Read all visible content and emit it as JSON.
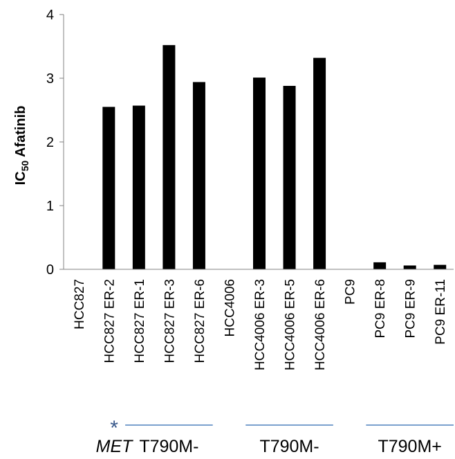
{
  "chart_data": {
    "type": "bar",
    "categories": [
      "HCC827",
      "HCC827 ER-2",
      "HCC827 ER-1",
      "HCC827 ER-3",
      "HCC827 ER-6",
      "HCC4006",
      "HCC4006 ER-3",
      "HCC4006 ER-5",
      "HCC4006 ER-6",
      "PC9",
      "PC9 ER-8",
      "PC9 ER-9",
      "PC9 ER-11"
    ],
    "values": [
      0,
      2.55,
      2.57,
      3.52,
      2.94,
      0,
      3.01,
      2.88,
      3.32,
      0,
      0.11,
      0.06,
      0.07
    ],
    "ylabel": {
      "main": "IC",
      "sub": "50",
      "rest": " Afatinib"
    },
    "xlabel": "",
    "ylim": [
      0,
      4
    ],
    "yticks": [
      "0",
      "1",
      "2",
      "3",
      "4"
    ],
    "grid": false,
    "bar_color": "#000000",
    "groups": [
      {
        "label": "T790M-",
        "italic_prefix": "MET",
        "marker": "*",
        "from": 2,
        "to": 4
      },
      {
        "label": "T790M-",
        "italic_prefix": "",
        "marker": "",
        "from": 6,
        "to": 8
      },
      {
        "label": "T790M+",
        "italic_prefix": "",
        "marker": "",
        "from": 10,
        "to": 12
      }
    ],
    "group_line_color": "#4f81bd"
  }
}
